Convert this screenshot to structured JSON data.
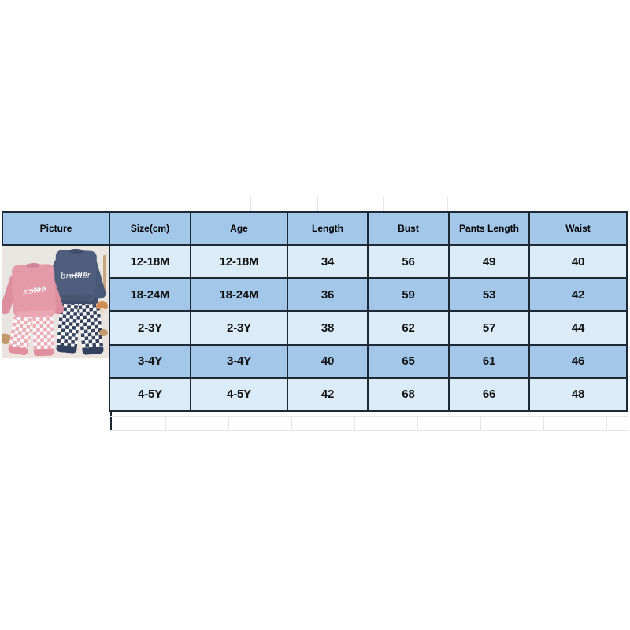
{
  "table": {
    "headers": [
      "Picture",
      "Size(cm)",
      "Age",
      "Length",
      "Bust",
      "Pants Length",
      "Waist"
    ],
    "rows": [
      {
        "size": "12-18M",
        "age": "12-18M",
        "length": "34",
        "bust": "56",
        "pants_length": "49",
        "waist": "40"
      },
      {
        "size": "18-24M",
        "age": "18-24M",
        "length": "36",
        "bust": "59",
        "pants_length": "53",
        "waist": "42"
      },
      {
        "size": "2-3Y",
        "age": "2-3Y",
        "length": "38",
        "bust": "62",
        "pants_length": "57",
        "waist": "44"
      },
      {
        "size": "3-4Y",
        "age": "3-4Y",
        "length": "40",
        "bust": "65",
        "pants_length": "61",
        "waist": "46"
      },
      {
        "size": "4-5Y",
        "age": "4-5Y",
        "length": "42",
        "bust": "68",
        "pants_length": "66",
        "waist": "48"
      }
    ]
  },
  "photo": {
    "pink_shirt_line1": "BIG",
    "pink_shirt_line2": "sister",
    "navy_shirt_line1": "BIG",
    "navy_shirt_line2": "brother"
  },
  "colors": {
    "header_fill": "#a2c7e8",
    "row_light_fill": "#dcebf8",
    "row_dark_fill": "#a2c7e8",
    "table_border": "#1e2936",
    "pink_sweatshirt": "#e49aa8",
    "navy_sweatshirt": "#4e5e7c",
    "pink_check": "#eba9b4",
    "navy_check": "#2e3c5a",
    "photo_background": "#e9e6e2"
  },
  "chart_data": {
    "type": "table",
    "columns": [
      "Picture",
      "Size(cm)",
      "Age",
      "Length",
      "Bust",
      "Pants Length",
      "Waist"
    ],
    "rows": [
      [
        "(product photo)",
        "12-18M",
        "12-18M",
        34,
        56,
        49,
        40
      ],
      [
        "",
        "18-24M",
        "18-24M",
        36,
        59,
        53,
        42
      ],
      [
        "",
        "2-3Y",
        "2-3Y",
        38,
        62,
        57,
        44
      ],
      [
        "",
        "3-4Y",
        "3-4Y",
        40,
        65,
        61,
        46
      ],
      [
        "",
        "4-5Y",
        "4-5Y",
        42,
        68,
        66,
        48
      ]
    ],
    "notes": "Measurements in cm; light/dark blue alternating rows; merged picture cell shows pink 'BIG sister' and navy 'BIG brother' sweatshirt + checkered pants sets"
  }
}
